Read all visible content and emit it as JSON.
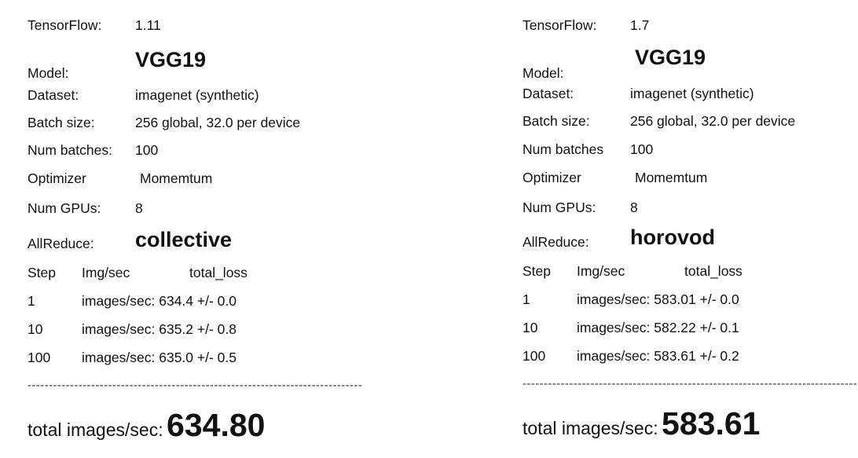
{
  "dash_line": "------------------------------------------------------------------------------------------------------------------------",
  "left": {
    "tensorflow": {
      "label": "TensorFlow:",
      "value": "1.11"
    },
    "model": {
      "label": "Model:",
      "value": "VGG19"
    },
    "dataset": {
      "label": "Dataset:",
      "value": "imagenet (synthetic)"
    },
    "batch_size": {
      "label": "Batch size:",
      "value": "256 global, 32.0 per device"
    },
    "num_batches": {
      "label": "Num batches:",
      "value": "100"
    },
    "optimizer": {
      "label": "Optimizer",
      "value": "Momemtum"
    },
    "num_gpus": {
      "label": "Num GPUs:",
      "value": "8"
    },
    "allreduce": {
      "label": "AllReduce:",
      "value": "collective"
    },
    "table": {
      "headers": [
        "Step",
        "Img/sec",
        "total_loss"
      ],
      "rows": [
        {
          "step": "1",
          "value": "images/sec: 634.4 +/- 0.0"
        },
        {
          "step": "10",
          "value": "images/sec: 635.2 +/- 0.8"
        },
        {
          "step": "100",
          "value": "images/sec: 635.0 +/- 0.5"
        }
      ]
    },
    "total": {
      "label": "total images/sec:",
      "value": "634.80"
    }
  },
  "right": {
    "tensorflow": {
      "label": "TensorFlow:",
      "value": "1.7"
    },
    "model": {
      "label": "Model:",
      "value": "VGG19"
    },
    "dataset": {
      "label": "Dataset:",
      "value": "imagenet (synthetic)"
    },
    "batch_size": {
      "label": "Batch size:",
      "value": "256 global,  32.0 per device"
    },
    "num_batches": {
      "label": "Num batches",
      "value": "100"
    },
    "optimizer": {
      "label": "Optimizer",
      "value": "Momemtum"
    },
    "num_gpus": {
      "label": "Num GPUs:",
      "value": "8"
    },
    "allreduce": {
      "label": "AllReduce:",
      "value": "horovod"
    },
    "table": {
      "headers": [
        "Step",
        "Img/sec",
        "total_loss"
      ],
      "rows": [
        {
          "step": "1",
          "value": "images/sec: 583.01 +/- 0.0"
        },
        {
          "step": "10",
          "value": "images/sec: 582.22 +/- 0.1"
        },
        {
          "step": "100",
          "value": "images/sec: 583.61 +/- 0.2"
        }
      ]
    },
    "total": {
      "label": "total images/sec:",
      "value": "583.61"
    }
  }
}
